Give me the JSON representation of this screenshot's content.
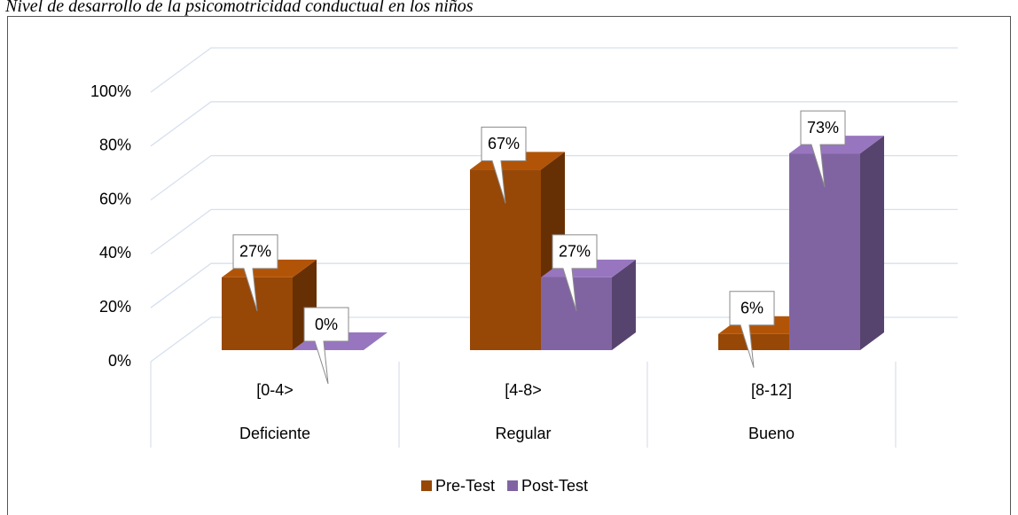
{
  "chart_data": {
    "type": "bar3d",
    "title": "Nivel de desarrollo de la psicomotricidad conductual en los niños",
    "categories": [
      "[0-4>",
      "[4-8>",
      "[8-12]"
    ],
    "category_groups": [
      "Deficiente",
      "Regular",
      "Bueno"
    ],
    "series": [
      {
        "name": "Pre-Test",
        "color": "#974706",
        "values": [
          27,
          67,
          6
        ],
        "value_labels": [
          "27%",
          "67%",
          "6%"
        ]
      },
      {
        "name": "Post-Test",
        "color": "#8064a2",
        "values": [
          0,
          27,
          73
        ],
        "value_labels": [
          "0%",
          "27%",
          "73%"
        ]
      }
    ],
    "ylim": [
      0,
      100
    ],
    "yticks": [
      {
        "value": 0,
        "label": "0%"
      },
      {
        "value": 20,
        "label": "20%"
      },
      {
        "value": 40,
        "label": "40%"
      },
      {
        "value": 60,
        "label": "60%"
      },
      {
        "value": 80,
        "label": "80%"
      },
      {
        "value": 100,
        "label": "100%"
      }
    ],
    "grid": true,
    "legend": "bottom"
  }
}
